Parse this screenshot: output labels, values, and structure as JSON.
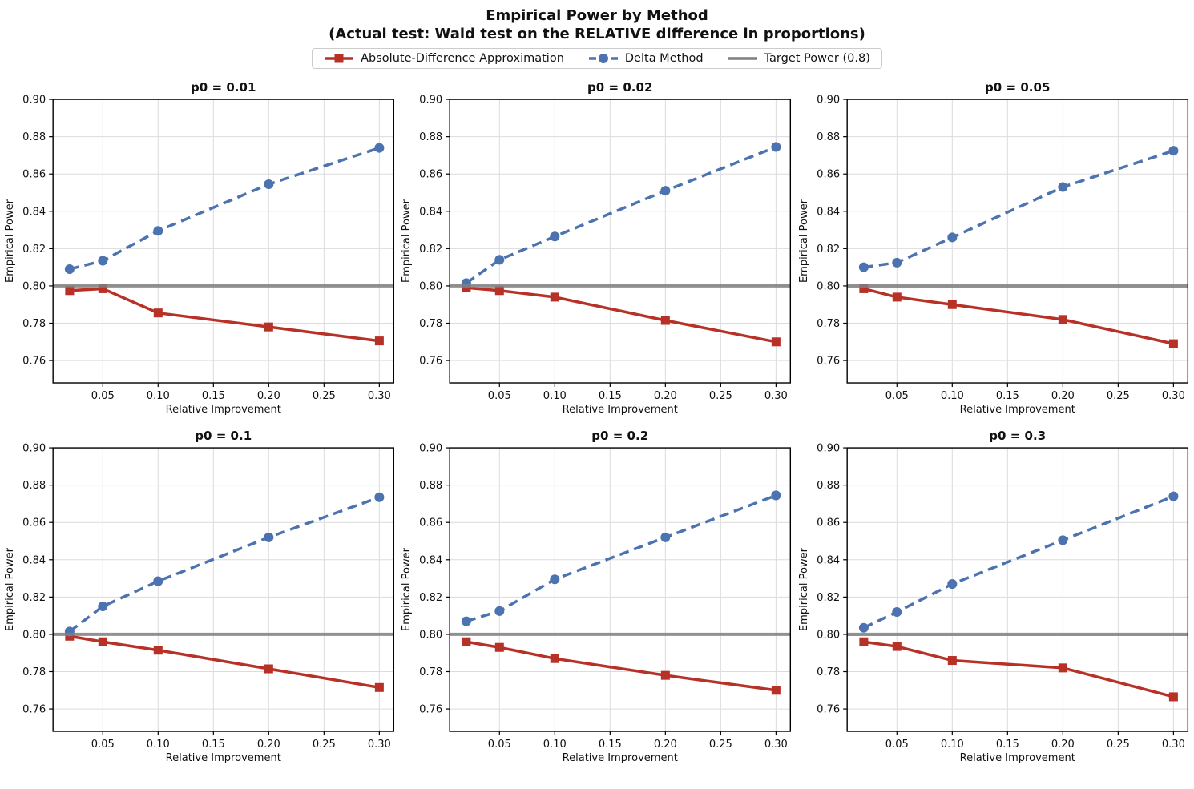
{
  "header": {
    "title": "Empirical Power by Method",
    "subtitle": "(Actual test: Wald test on the RELATIVE difference in proportions)"
  },
  "legend": {
    "items": [
      {
        "label": "Absolute-Difference Approximation",
        "color": "#b73127",
        "marker": "square",
        "line": "solid"
      },
      {
        "label": "Delta Method",
        "color": "#4c72b0",
        "marker": "circle",
        "line": "dashed"
      },
      {
        "label": "Target Power (0.8)",
        "color": "#7f7f7f",
        "marker": "none",
        "line": "solid"
      }
    ]
  },
  "colors": {
    "abs_diff": "#b73127",
    "delta": "#4c72b0",
    "target": "#7f7f7f",
    "grid_line": "#dcdcdc",
    "spine": "#000000",
    "text": "#111111"
  },
  "chart_data": {
    "type": "line",
    "grid": true,
    "x": [
      0.02,
      0.05,
      0.1,
      0.2,
      0.3
    ],
    "xlabel": "Relative Improvement",
    "ylabel": "Empirical Power",
    "xlim": [
      0.005,
      0.313
    ],
    "ylim": [
      0.748,
      0.9
    ],
    "xticks": [
      0.05,
      0.1,
      0.15,
      0.2,
      0.25,
      0.3
    ],
    "yticks": [
      0.76,
      0.78,
      0.8,
      0.82,
      0.84,
      0.86,
      0.88,
      0.9
    ],
    "target_power": 0.8,
    "series_names": [
      "Absolute-Difference Approximation",
      "Delta Method"
    ],
    "legend_position": "top-center",
    "subplots": [
      {
        "title": "p0 = 0.01",
        "series": [
          {
            "name": "Absolute-Difference Approximation",
            "values": [
              0.7975,
              0.7985,
              0.7855,
              0.778,
              0.7705
            ]
          },
          {
            "name": "Delta Method",
            "values": [
              0.809,
              0.8135,
              0.8295,
              0.8545,
              0.874
            ]
          }
        ]
      },
      {
        "title": "p0 = 0.02",
        "series": [
          {
            "name": "Absolute-Difference Approximation",
            "values": [
              0.799,
              0.7975,
              0.794,
              0.7815,
              0.77
            ]
          },
          {
            "name": "Delta Method",
            "values": [
              0.8015,
              0.814,
              0.8265,
              0.851,
              0.8745
            ]
          }
        ]
      },
      {
        "title": "p0 = 0.05",
        "series": [
          {
            "name": "Absolute-Difference Approximation",
            "values": [
              0.7985,
              0.794,
              0.79,
              0.782,
              0.769
            ]
          },
          {
            "name": "Delta Method",
            "values": [
              0.81,
              0.8125,
              0.826,
              0.853,
              0.8725
            ]
          }
        ]
      },
      {
        "title": "p0 = 0.1",
        "series": [
          {
            "name": "Absolute-Difference Approximation",
            "values": [
              0.799,
              0.796,
              0.7915,
              0.7815,
              0.7715
            ]
          },
          {
            "name": "Delta Method",
            "values": [
              0.8015,
              0.815,
              0.8285,
              0.852,
              0.8735
            ]
          }
        ]
      },
      {
        "title": "p0 = 0.2",
        "series": [
          {
            "name": "Absolute-Difference Approximation",
            "values": [
              0.796,
              0.793,
              0.787,
              0.778,
              0.77
            ]
          },
          {
            "name": "Delta Method",
            "values": [
              0.807,
              0.8125,
              0.8295,
              0.852,
              0.8745
            ]
          }
        ]
      },
      {
        "title": "p0 = 0.3",
        "series": [
          {
            "name": "Absolute-Difference Approximation",
            "values": [
              0.796,
              0.7935,
              0.786,
              0.782,
              0.7665
            ]
          },
          {
            "name": "Delta Method",
            "values": [
              0.8035,
              0.812,
              0.827,
              0.8505,
              0.874
            ]
          }
        ]
      }
    ]
  }
}
